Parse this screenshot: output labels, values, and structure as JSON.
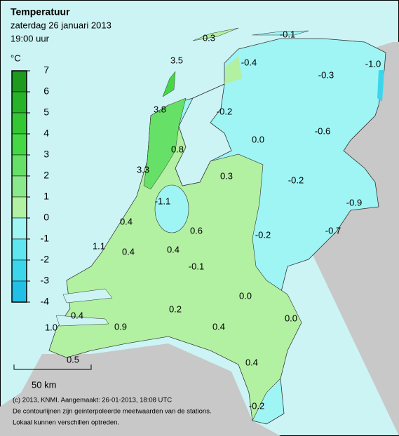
{
  "header": {
    "title": "Temperatuur",
    "date": "zaterdag 26 januari 2013",
    "time": "19:00 uur"
  },
  "legend": {
    "unit": "°C",
    "ticks": [
      "7",
      "6",
      "5",
      "4",
      "3",
      "2",
      "1",
      "0",
      "-1",
      "-2",
      "-3",
      "-4"
    ],
    "colors": [
      "#1e9a1e",
      "#27b327",
      "#33c833",
      "#45d845",
      "#66e066",
      "#8ae98a",
      "#b2f0a2",
      "#9ff4f4",
      "#5fe6ef",
      "#3cd6ec",
      "#22c0e6"
    ]
  },
  "stations": [
    "0.3",
    "-0.1",
    "-0.4",
    "-1.0",
    "3.5",
    "-0.3",
    "3.8",
    "-0.2",
    "-0.6",
    "0.0",
    "0.8",
    "3.3",
    "0.3",
    "-0.2",
    "-1.1",
    "-0.9",
    "0.4",
    "0.6",
    "-0.2",
    "-0.7",
    "1.1",
    "0.4",
    "0.4",
    "-0.1",
    "0.0",
    "0.2",
    "0.4",
    "0.0",
    "0.9",
    "0.4",
    "1.0",
    "0.5",
    "0.4",
    "-0.2"
  ],
  "scale_label": "50 km",
  "footer": [
    "(c) 2013, KNMI. Aangemaakt: 26-01-2013, 18:08 UTC",
    "De contourlijnen zijn geinterpoleerde meetwaarden van de stations.",
    "Lokaal kunnen verschillen optreden."
  ]
}
